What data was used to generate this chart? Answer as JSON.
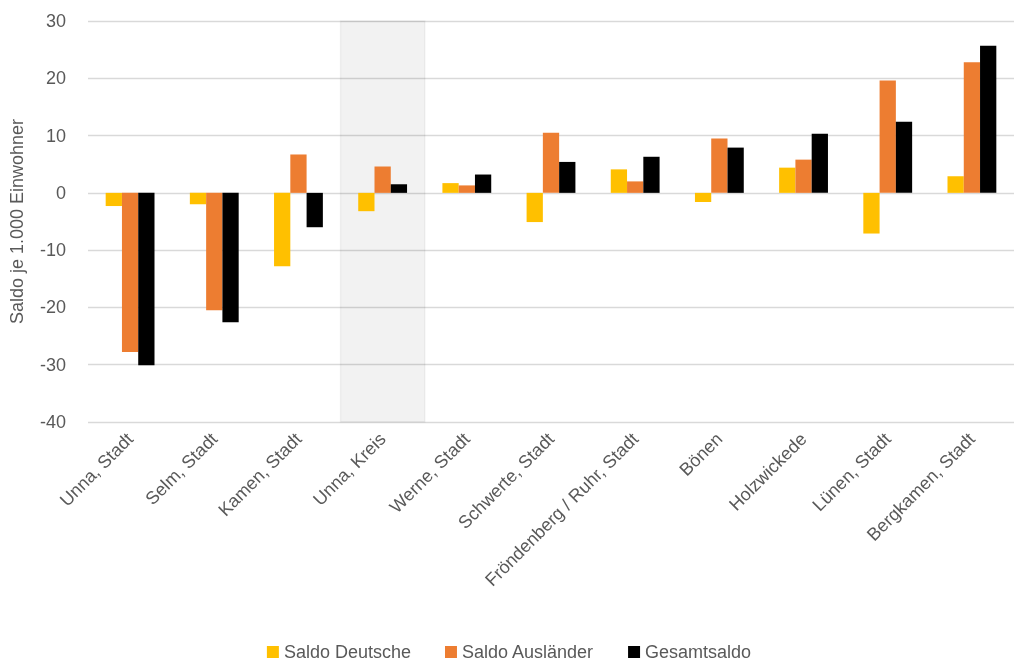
{
  "chart_data": {
    "type": "bar",
    "ylabel": "Saldo je 1.000 Einwohner",
    "categories": [
      "Unna, Stadt",
      "Selm, Stadt",
      "Kamen, Stadt",
      "Unna, Kreis",
      "Werne, Stadt",
      "Schwerte, Stadt",
      "Fröndenberg / Ruhr, Stadt",
      "Bönen",
      "Holzwickede",
      "Lünen, Stadt",
      "Bergkamen, Stadt"
    ],
    "series": [
      {
        "name": "Saldo Deutsche",
        "color": "#ffc000",
        "values": [
          -2.3,
          -2.0,
          -12.8,
          -3.2,
          1.7,
          -5.1,
          4.1,
          -1.6,
          4.4,
          -7.1,
          2.9
        ]
      },
      {
        "name": "Saldo Ausländer",
        "color": "#ed7d31",
        "values": [
          -27.8,
          -20.5,
          6.7,
          4.6,
          1.3,
          10.5,
          2.0,
          9.5,
          5.8,
          19.6,
          22.8
        ]
      },
      {
        "name": "Gesamtsaldo",
        "color": "#000000",
        "values": [
          -30.1,
          -22.6,
          -6.0,
          1.5,
          3.2,
          5.4,
          6.3,
          7.9,
          10.3,
          12.4,
          25.7
        ]
      }
    ],
    "ylim": [
      -40,
      30
    ],
    "yticks": [
      -40,
      -30,
      -20,
      -10,
      0,
      10,
      20,
      30
    ],
    "grid": "y",
    "legend": "bottom",
    "bands": [
      {
        "axis": "x",
        "from": "Unna, Kreis",
        "to": "Unna, Kreis",
        "color": "#000000"
      }
    ]
  }
}
